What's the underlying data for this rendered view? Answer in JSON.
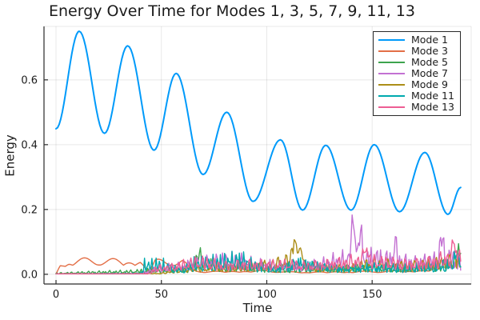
{
  "chart_data": {
    "type": "line",
    "title": "Energy Over Time for Modes 1, 3, 5, 7, 9, 11, 13",
    "xlabel": "Time",
    "ylabel": "Energy",
    "xlim": [
      -5.7,
      197
    ],
    "ylim": [
      -0.03,
      0.765
    ],
    "t_end": 192,
    "grid": true,
    "legend_position": "top-right",
    "background": "#ffffff",
    "grid_color": "rgba(0,0,0,0.09)",
    "axis_color": "#2a2a2a",
    "xticks": {
      "values": [
        0,
        50,
        100,
        150
      ],
      "labels": [
        "0",
        "50",
        "100",
        "150"
      ]
    },
    "yticks": {
      "values": [
        0,
        0.2,
        0.4,
        0.6
      ],
      "labels": [
        "0.0",
        "0.2",
        "0.4",
        "0.6"
      ]
    },
    "series": [
      {
        "name": "Mode 1",
        "color": "#009AFA",
        "style": "smooth",
        "width": 2,
        "keypoints": [
          [
            0,
            0.449
          ],
          [
            11,
            0.75
          ],
          [
            23,
            0.435
          ],
          [
            34,
            0.705
          ],
          [
            46.5,
            0.383
          ],
          [
            57,
            0.62
          ],
          [
            69.8,
            0.308
          ],
          [
            81,
            0.5
          ],
          [
            93.5,
            0.225
          ],
          [
            106.5,
            0.415
          ],
          [
            117,
            0.198
          ],
          [
            128,
            0.398
          ],
          [
            140,
            0.198
          ],
          [
            151,
            0.4
          ],
          [
            163,
            0.193
          ],
          [
            175,
            0.376
          ],
          [
            186,
            0.185
          ],
          [
            192,
            0.268
          ]
        ]
      },
      {
        "name": "Mode 3",
        "color": "#E36F47",
        "style": "noisy",
        "width": 1.4,
        "env": [
          [
            0,
            0.0
          ],
          [
            2,
            0.035
          ],
          [
            6,
            0.05
          ],
          [
            20,
            0.052
          ],
          [
            40,
            0.05
          ],
          [
            44,
            0.012
          ],
          [
            47,
            0.052
          ],
          [
            60,
            0.048
          ],
          [
            64,
            0.018
          ],
          [
            70,
            0.01
          ],
          [
            100,
            0.013
          ],
          [
            110,
            0.008
          ],
          [
            150,
            0.01
          ],
          [
            175,
            0.014
          ],
          [
            185,
            0.032
          ],
          [
            192,
            0.05
          ]
        ],
        "base": 0.55,
        "f1": 0.26,
        "f2": 0.19,
        "p1": 1.1,
        "p2": 2.3,
        "spikes": []
      },
      {
        "name": "Mode 5",
        "color": "#3DA44E",
        "style": "noisy",
        "width": 1.4,
        "env": [
          [
            0,
            0.005
          ],
          [
            15,
            0.01
          ],
          [
            35,
            0.014
          ],
          [
            45,
            0.02
          ],
          [
            62,
            0.022
          ],
          [
            66,
            0.062
          ],
          [
            75,
            0.055
          ],
          [
            80,
            0.03
          ],
          [
            88,
            0.05
          ],
          [
            95,
            0.03
          ],
          [
            110,
            0.026
          ],
          [
            130,
            0.03
          ],
          [
            150,
            0.034
          ],
          [
            170,
            0.03
          ],
          [
            185,
            0.05
          ],
          [
            192,
            0.07
          ]
        ],
        "base": 0.2,
        "f1": 1.9,
        "f2": 1.23,
        "p1": 0.4,
        "p2": 1.7,
        "spikes": [
          [
            68,
            0.035,
            1.0
          ],
          [
            191,
            0.04,
            1.2
          ]
        ]
      },
      {
        "name": "Mode 7",
        "color": "#C371D2",
        "style": "noisy",
        "width": 1.4,
        "env": [
          [
            0,
            0.001
          ],
          [
            40,
            0.003
          ],
          [
            48,
            0.032
          ],
          [
            60,
            0.04
          ],
          [
            74,
            0.07
          ],
          [
            85,
            0.075
          ],
          [
            95,
            0.05
          ],
          [
            110,
            0.042
          ],
          [
            125,
            0.05
          ],
          [
            134,
            0.075
          ],
          [
            150,
            0.09
          ],
          [
            158,
            0.08
          ],
          [
            170,
            0.06
          ],
          [
            178,
            0.07
          ],
          [
            186,
            0.09
          ],
          [
            192,
            0.06
          ]
        ],
        "base": 0.2,
        "f1": 2.1,
        "f2": 1.37,
        "p1": 2.0,
        "p2": 0.6,
        "spikes": [
          [
            141,
            0.12,
            1.3
          ],
          [
            144.5,
            0.09,
            1.0
          ],
          [
            161,
            0.06,
            1.0
          ],
          [
            183,
            0.07,
            1.2
          ]
        ]
      },
      {
        "name": "Mode 9",
        "color": "#AC8E18",
        "style": "noisy",
        "width": 1.4,
        "env": [
          [
            0,
            0.001
          ],
          [
            50,
            0.004
          ],
          [
            58,
            0.02
          ],
          [
            70,
            0.03
          ],
          [
            85,
            0.035
          ],
          [
            100,
            0.045
          ],
          [
            106,
            0.06
          ],
          [
            112,
            0.075
          ],
          [
            118,
            0.05
          ],
          [
            125,
            0.03
          ],
          [
            140,
            0.032
          ],
          [
            148,
            0.055
          ],
          [
            155,
            0.05
          ],
          [
            165,
            0.04
          ],
          [
            175,
            0.05
          ],
          [
            185,
            0.06
          ],
          [
            192,
            0.08
          ]
        ],
        "base": 0.25,
        "f1": 1.5,
        "f2": 0.97,
        "p1": 0.9,
        "p2": 2.8,
        "spikes": [
          [
            113.5,
            0.075,
            1.4
          ],
          [
            116.5,
            0.05,
            0.8
          ]
        ]
      },
      {
        "name": "Mode 11",
        "color": "#00AAAE",
        "style": "noisy",
        "width": 1.4,
        "env": [
          [
            0,
            0.002
          ],
          [
            40,
            0.005
          ],
          [
            42,
            0.05
          ],
          [
            50,
            0.055
          ],
          [
            55,
            0.03
          ],
          [
            60,
            0.025
          ],
          [
            65,
            0.055
          ],
          [
            72,
            0.06
          ],
          [
            80,
            0.07
          ],
          [
            88,
            0.08
          ],
          [
            95,
            0.045
          ],
          [
            105,
            0.03
          ],
          [
            115,
            0.065
          ],
          [
            122,
            0.05
          ],
          [
            135,
            0.03
          ],
          [
            150,
            0.04
          ],
          [
            165,
            0.035
          ],
          [
            180,
            0.04
          ],
          [
            192,
            0.06
          ]
        ],
        "base": 0.15,
        "f1": 2.8,
        "f2": 1.73,
        "p1": 0.2,
        "p2": 1.3,
        "spikes": [
          [
            190,
            0.045,
            1.0
          ]
        ]
      },
      {
        "name": "Mode 13",
        "color": "#ED5E93",
        "style": "noisy",
        "width": 1.4,
        "env": [
          [
            0,
            0.001
          ],
          [
            44,
            0.003
          ],
          [
            47,
            0.03
          ],
          [
            55,
            0.035
          ],
          [
            65,
            0.058
          ],
          [
            70,
            0.06
          ],
          [
            80,
            0.042
          ],
          [
            90,
            0.05
          ],
          [
            100,
            0.046
          ],
          [
            110,
            0.05
          ],
          [
            120,
            0.042
          ],
          [
            134,
            0.055
          ],
          [
            145,
            0.07
          ],
          [
            155,
            0.06
          ],
          [
            165,
            0.05
          ],
          [
            175,
            0.055
          ],
          [
            182,
            0.07
          ],
          [
            188,
            0.09
          ],
          [
            192,
            0.09
          ]
        ],
        "base": 0.25,
        "f1": 1.7,
        "f2": 1.11,
        "p1": 2.6,
        "p2": 0.15,
        "spikes": [
          [
            147,
            0.05,
            1.2
          ],
          [
            189,
            0.06,
            0.9
          ]
        ]
      }
    ]
  }
}
